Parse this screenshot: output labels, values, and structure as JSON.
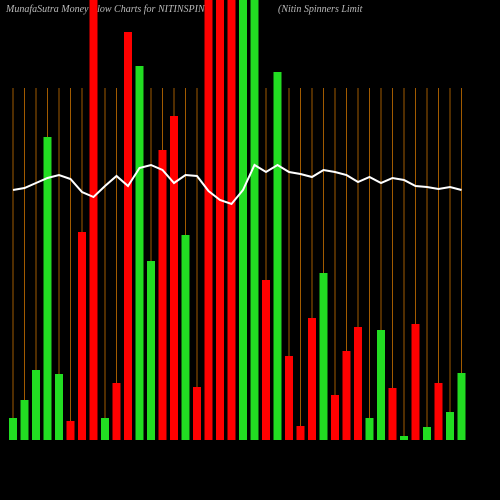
{
  "chart_data": {
    "type": "bar",
    "title": "MunafaSutra  Money Flow  Charts for NITINSPIN",
    "subtitle": "(Nitin  Spinners Limit",
    "categories": [
      null,
      null,
      null,
      null,
      null,
      null,
      null,
      null,
      null,
      null,
      null,
      null,
      null,
      null,
      null,
      null,
      null,
      null,
      null,
      null,
      null,
      null,
      null,
      null,
      null,
      null,
      null,
      null,
      null,
      null,
      null,
      null,
      null,
      null,
      null,
      null,
      null,
      null,
      null,
      null
    ],
    "values": [
      22,
      40,
      70,
      303,
      66,
      19,
      208,
      440,
      22,
      57,
      408,
      374,
      179,
      290,
      324,
      205,
      53,
      440,
      440,
      440,
      440,
      440,
      160,
      368,
      84,
      14,
      122,
      167,
      45,
      89,
      113,
      22,
      110,
      52,
      4,
      116,
      13,
      57,
      28,
      67
    ],
    "colors": [
      "#22dd22",
      "#22dd22",
      "#22dd22",
      "#22dd22",
      "#22dd22",
      "#ff0000",
      "#ff0000",
      "#ff0000",
      "#22dd22",
      "#ff0000",
      "#ff0000",
      "#22dd22",
      "#22dd22",
      "#ff0000",
      "#ff0000",
      "#22dd22",
      "#ff0000",
      "#ff0000",
      "#ff0000",
      "#ff0000",
      "#22dd22",
      "#22dd22",
      "#ff0000",
      "#22dd22",
      "#ff0000",
      "#ff0000",
      "#ff0000",
      "#22dd22",
      "#ff0000",
      "#ff0000",
      "#ff0000",
      "#22dd22",
      "#22dd22",
      "#ff0000",
      "#22dd22",
      "#ff0000",
      "#22dd22",
      "#ff0000",
      "#22dd22",
      "#22dd22"
    ],
    "line": {
      "color": "#ffffff",
      "values": [
        250,
        252,
        257,
        262,
        265,
        261,
        248,
        243,
        254,
        264,
        254,
        272,
        275,
        270,
        257,
        265,
        264,
        249,
        240,
        236,
        250,
        275,
        268,
        275,
        268,
        266,
        263,
        270,
        268,
        265,
        258,
        263,
        257,
        262,
        260,
        254,
        253,
        251,
        253,
        250
      ]
    },
    "ylim": [
      0,
      440
    ],
    "grid_color": "#a05a00"
  }
}
